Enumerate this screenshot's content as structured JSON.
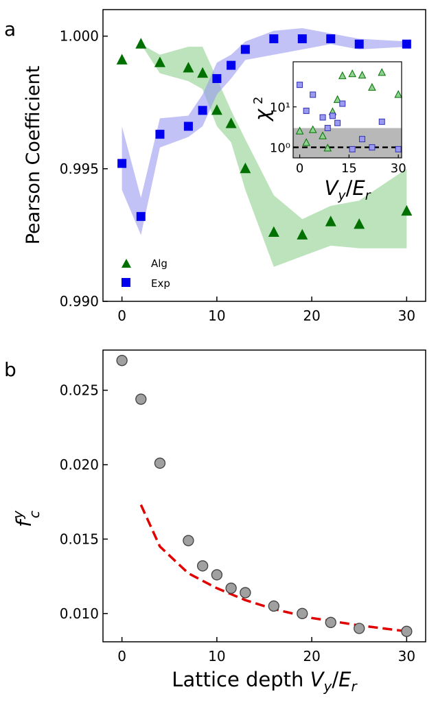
{
  "figure": {
    "panel_a_label": "a",
    "panel_b_label": "b",
    "colors": {
      "alg": "#007000",
      "alg_band": "#90d090",
      "exp": "#0000ee",
      "exp_band": "#9a9af0",
      "inset_band": "#b8b8b8",
      "marker_gray": "#a0a0a0",
      "fit_line": "#e00000"
    }
  },
  "chart_data": [
    {
      "id": "pearson",
      "type": "scatter",
      "ylabel": "Pearson Coefficient",
      "xlabel": "",
      "xlim": [
        -2,
        32
      ],
      "ylim": [
        0.99,
        1.001
      ],
      "xticks": [
        0,
        10,
        20,
        30
      ],
      "yticks": [
        0.99,
        0.995,
        1.0
      ],
      "ytick_labels": [
        "0.990",
        "0.995",
        "1.000"
      ],
      "legend_position": "lower-left",
      "x": [
        0,
        2,
        4,
        7,
        8.5,
        10,
        11.5,
        13,
        16,
        19,
        22,
        25,
        30
      ],
      "series": [
        {
          "name": "Alg",
          "marker": "triangle",
          "values": [
            0.9991,
            0.9997,
            0.999,
            0.9988,
            0.9986,
            0.9972,
            0.9967,
            0.995,
            0.9926,
            0.9925,
            0.993,
            0.9929,
            0.9934
          ],
          "band_lower": [
            0.9991,
            0.9997,
            0.9986,
            0.9983,
            0.998,
            0.9966,
            0.996,
            0.9942,
            0.9913,
            0.9917,
            0.9921,
            0.992,
            0.992
          ],
          "band_upper": [
            0.9991,
            0.9997,
            0.9993,
            0.9996,
            0.9996,
            0.9984,
            0.9972,
            0.9961,
            0.994,
            0.9931,
            0.9936,
            0.9938,
            0.995
          ]
        },
        {
          "name": "Exp",
          "marker": "square",
          "values": [
            0.9952,
            0.9932,
            0.9963,
            0.9966,
            0.9972,
            0.9984,
            0.9989,
            0.9995,
            0.9999,
            0.9999,
            0.9999,
            0.9997,
            0.9997
          ],
          "band_lower": [
            0.9942,
            0.9925,
            0.9958,
            0.9962,
            0.9966,
            0.9978,
            0.9984,
            0.9991,
            0.9993,
            0.9995,
            0.9997,
            0.9995,
            0.9996
          ],
          "band_upper": [
            0.9966,
            0.9939,
            0.9969,
            0.997,
            0.9978,
            0.999,
            0.9993,
            0.9998,
            1.0002,
            1.0003,
            1.0001,
            0.9999,
            0.9998
          ]
        }
      ]
    },
    {
      "id": "chi2-inset",
      "type": "scatter",
      "ylabel": "χ²",
      "xlabel": "Vy/Er",
      "xlim": [
        -2,
        31
      ],
      "ylim": [
        0.55,
        130
      ],
      "yscale": "log",
      "xticks": [
        0,
        15,
        30
      ],
      "yticks": [
        1,
        10
      ],
      "ytick_labels": [
        "10⁰",
        "10¹"
      ],
      "shaded_region": [
        0.55,
        3
      ],
      "reference_line": 1,
      "series": [
        {
          "name": "Alg",
          "marker": "triangle",
          "x": [
            0,
            2,
            4,
            7,
            8.5,
            10,
            11.5,
            13,
            16,
            19,
            22,
            25,
            30
          ],
          "values": [
            2.5,
            1.3,
            2.7,
            1.9,
            0.95,
            7.5,
            15,
            58,
            65,
            60,
            30,
            70,
            20
          ]
        },
        {
          "name": "Exp",
          "marker": "square",
          "x": [
            0,
            2,
            4,
            7,
            8.5,
            10,
            11.5,
            13,
            16,
            19,
            22,
            25,
            30
          ],
          "values": [
            35,
            8,
            20,
            5.5,
            3,
            6,
            4,
            12,
            0.9,
            1.6,
            1,
            4.3,
            0.9
          ]
        }
      ]
    },
    {
      "id": "fc",
      "type": "scatter",
      "ylabel": "f_c^y",
      "xlabel": "Lattice depth Vy/Er",
      "xlim": [
        -2,
        32
      ],
      "ylim": [
        0.0081,
        0.0277
      ],
      "xticks": [
        0,
        10,
        20,
        30
      ],
      "yticks": [
        0.01,
        0.015,
        0.02,
        0.025
      ],
      "ytick_labels": [
        "0.010",
        "0.015",
        "0.020",
        "0.025"
      ],
      "series": [
        {
          "name": "data",
          "marker": "circle",
          "x": [
            0,
            2,
            4,
            7,
            8.5,
            10,
            11.5,
            13,
            16,
            19,
            22,
            25,
            30
          ],
          "values": [
            0.027,
            0.0244,
            0.0201,
            0.0149,
            0.0132,
            0.0126,
            0.0117,
            0.0114,
            0.0105,
            0.01,
            0.0094,
            0.009,
            0.0088
          ]
        },
        {
          "name": "fit",
          "line_style": "dashed",
          "x": [
            2,
            4,
            7,
            10,
            13,
            16,
            20,
            25,
            30
          ],
          "values": [
            0.0173,
            0.0145,
            0.0127,
            0.0117,
            0.0109,
            0.0103,
            0.0097,
            0.0092,
            0.0088
          ]
        }
      ]
    }
  ]
}
